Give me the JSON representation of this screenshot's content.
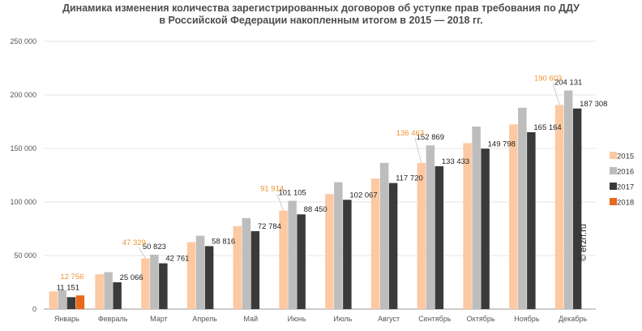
{
  "title_line1": "Динамика изменения количества зарегистрированных договоров об уступке прав требования по ДДУ",
  "title_line2": "в Российской Федерации накопленным итогом в 2015 — 2018 гг.",
  "watermark": "© erzrf.ru",
  "chart_data": {
    "type": "bar",
    "title": "Динамика изменения количества зарегистрированных договоров об уступке прав требования по ДДУ в Российской Федерации накопленным итогом в 2015 — 2018 гг.",
    "categories": [
      "Январь",
      "Февраль",
      "Март",
      "Апрель",
      "Май",
      "Июнь",
      "Июль",
      "Август",
      "Сентябрь",
      "Октябрь",
      "Ноябрь",
      "Декабрь"
    ],
    "ylim": [
      0,
      250000
    ],
    "yticks": [
      0,
      50000,
      100000,
      150000,
      200000,
      250000
    ],
    "ytick_labels": [
      "0",
      "50 000",
      "100 000",
      "150 000",
      "200 000",
      "250 000"
    ],
    "grid": true,
    "legend_position": "right",
    "series": [
      {
        "name": "2015",
        "color": "#fcc9a2",
        "values": [
          16500,
          32500,
          47329,
          62500,
          77500,
          91914,
          107500,
          122000,
          136463,
          155000,
          172500,
          190603
        ],
        "labels": [
          null,
          null,
          "47 329",
          null,
          null,
          "91 914",
          null,
          null,
          "136 463",
          null,
          null,
          "190 603"
        ]
      },
      {
        "name": "2016",
        "color": "#bdbdbd",
        "values": [
          17500,
          34500,
          50823,
          68500,
          85000,
          101105,
          118500,
          136500,
          152869,
          170500,
          188000,
          204131
        ],
        "labels": [
          null,
          null,
          "50 823",
          null,
          null,
          "101 105",
          null,
          null,
          "152 869",
          null,
          null,
          "204 131"
        ]
      },
      {
        "name": "2017",
        "color": "#3a3a3a",
        "values": [
          11151,
          25066,
          42761,
          58816,
          72784,
          88450,
          102067,
          117720,
          133433,
          149798,
          165164,
          187308
        ],
        "labels": [
          "11 151",
          "25 066",
          "42 761",
          "58 816",
          "72 784",
          "88 450",
          "102 067",
          "117 720",
          "133 433",
          "149 798",
          "165 164",
          "187 308"
        ]
      },
      {
        "name": "2018",
        "color": "#e8691b",
        "values": [
          12756,
          null,
          null,
          null,
          null,
          null,
          null,
          null,
          null,
          null,
          null,
          null
        ],
        "labels": [
          "12 756",
          null,
          null,
          null,
          null,
          null,
          null,
          null,
          null,
          null,
          null,
          null
        ]
      }
    ]
  }
}
